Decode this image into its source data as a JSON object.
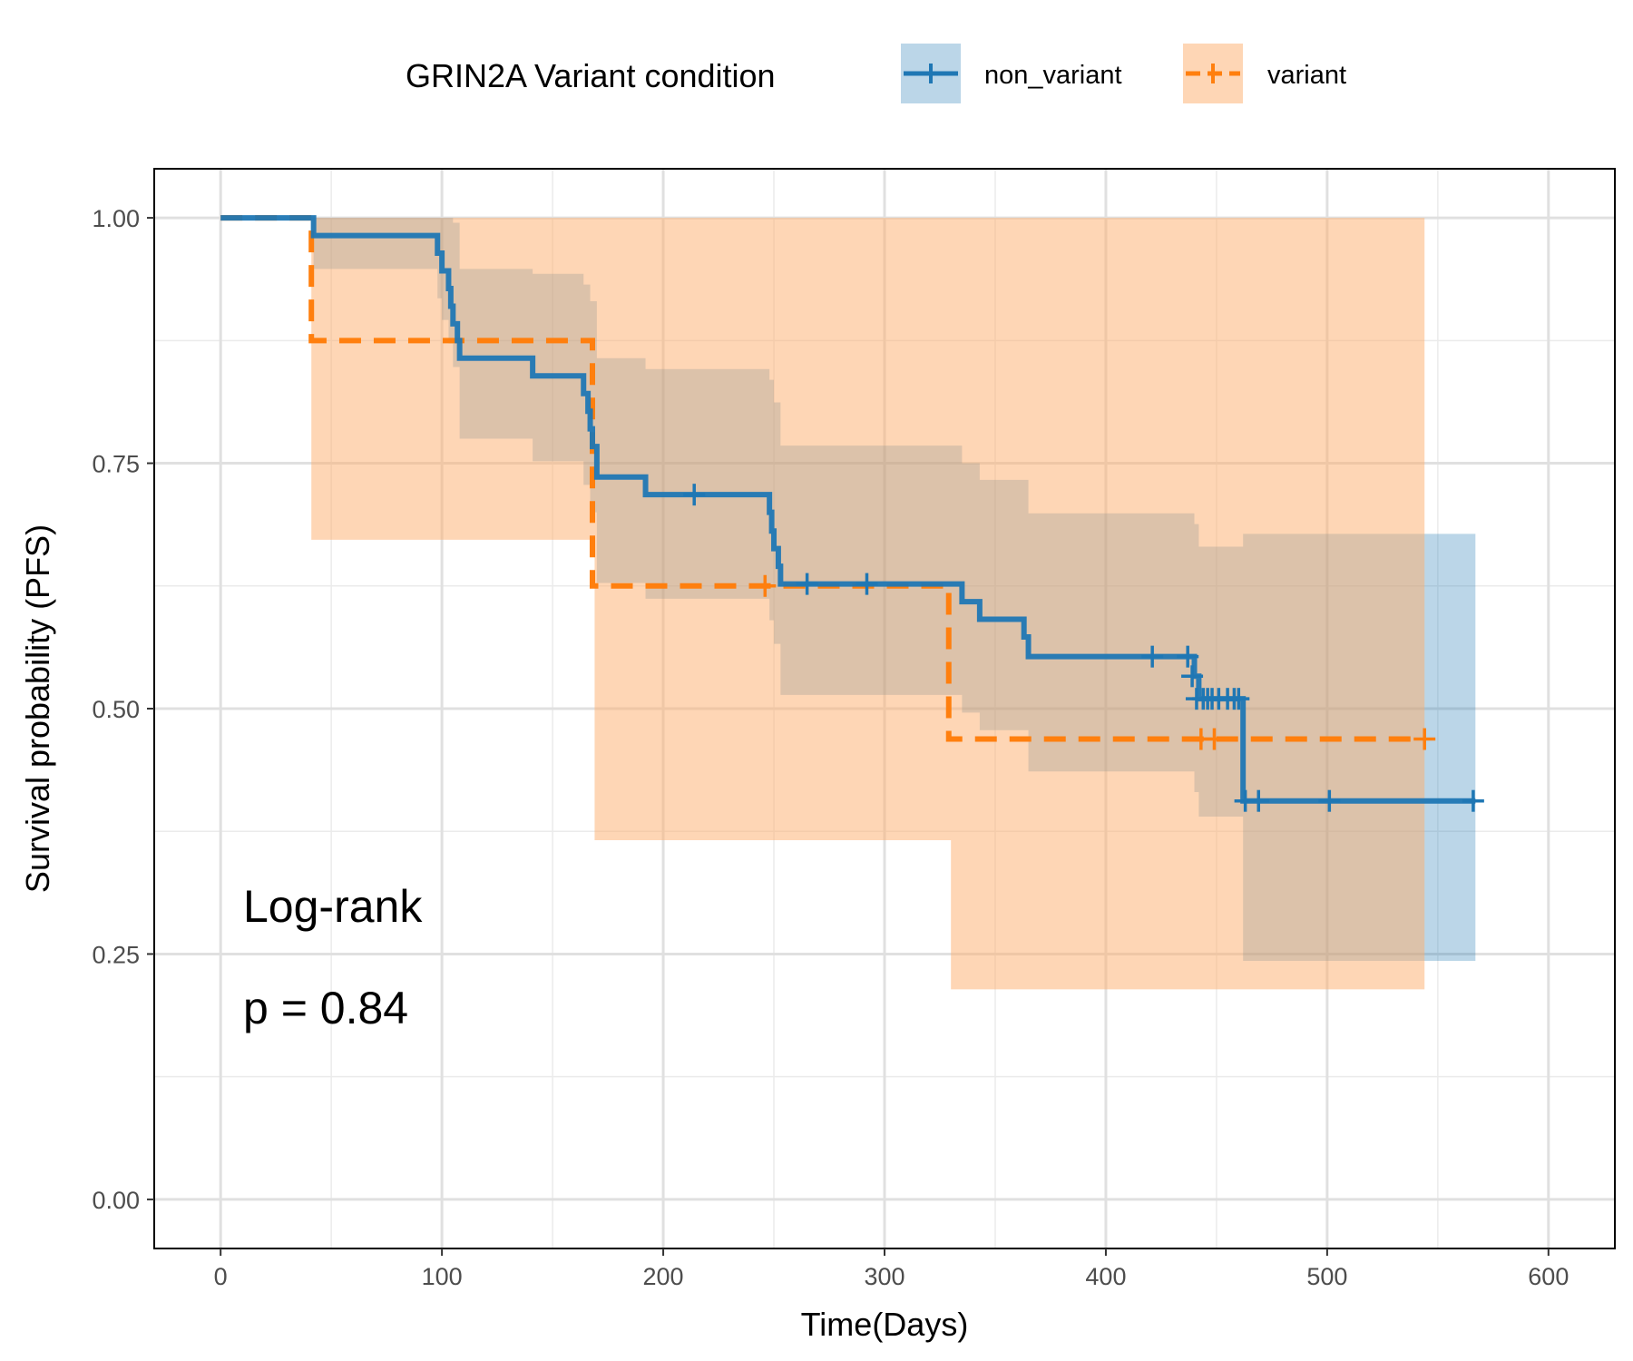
{
  "chart_data": {
    "type": "line",
    "subtype": "kaplan-meier-step",
    "xlabel": "Time(Days)",
    "ylabel": "Survival probability (PFS)",
    "xlim": [
      -30,
      630
    ],
    "ylim": [
      -0.05,
      1.05
    ],
    "x_ticks": [
      0,
      100,
      200,
      300,
      400,
      500,
      600
    ],
    "x_tick_labels": [
      "0",
      "100",
      "200",
      "300",
      "400",
      "500",
      "600"
    ],
    "y_ticks": [
      0,
      0.25,
      0.5,
      0.75,
      1.0
    ],
    "y_tick_labels": [
      "0.00",
      "0.25",
      "0.50",
      "0.75",
      "1.00"
    ],
    "grid": true,
    "legend": {
      "position": "top",
      "title": "GRIN2A Variant condition"
    },
    "annotations": [
      {
        "text": "Log-rank"
      },
      {
        "text": "p = 0.84"
      }
    ],
    "series": [
      {
        "name": "non_variant",
        "color": "#1f77b4",
        "band_color": "#1f77b4",
        "line_style": "solid",
        "steps": [
          [
            0,
            1.0
          ],
          [
            42,
            0.982
          ],
          [
            98,
            0.964
          ],
          [
            100,
            0.946
          ],
          [
            103,
            0.928
          ],
          [
            104,
            0.91
          ],
          [
            105,
            0.892
          ],
          [
            107,
            0.875
          ],
          [
            108,
            0.857
          ],
          [
            141,
            0.839
          ],
          [
            164,
            0.821
          ],
          [
            166,
            0.803
          ],
          [
            167,
            0.785
          ],
          [
            168,
            0.767
          ],
          [
            170,
            0.736
          ],
          [
            192,
            0.718
          ],
          [
            248,
            0.7
          ],
          [
            249,
            0.681
          ],
          [
            250,
            0.663
          ],
          [
            252,
            0.645
          ],
          [
            253,
            0.627
          ],
          [
            335,
            0.609
          ],
          [
            343,
            0.591
          ],
          [
            363,
            0.573
          ],
          [
            365,
            0.553
          ],
          [
            440,
            0.533
          ],
          [
            442,
            0.51
          ],
          [
            462,
            0.406
          ],
          [
            567,
            0.406
          ]
        ],
        "ci_band": [
          [
            0,
            1.0,
            1.0
          ],
          [
            42,
            0.948,
            1.0
          ],
          [
            98,
            0.918,
            1.0
          ],
          [
            100,
            0.896,
            1.0
          ],
          [
            103,
            0.872,
            1.0
          ],
          [
            105,
            0.848,
            0.995
          ],
          [
            108,
            0.775,
            0.948
          ],
          [
            141,
            0.752,
            0.943
          ],
          [
            164,
            0.728,
            0.932
          ],
          [
            167,
            0.7,
            0.915
          ],
          [
            170,
            0.628,
            0.857
          ],
          [
            192,
            0.612,
            0.846
          ],
          [
            248,
            0.59,
            0.835
          ],
          [
            250,
            0.566,
            0.812
          ],
          [
            253,
            0.514,
            0.768
          ],
          [
            335,
            0.496,
            0.75
          ],
          [
            343,
            0.478,
            0.733
          ],
          [
            365,
            0.436,
            0.699
          ],
          [
            440,
            0.415,
            0.688
          ],
          [
            442,
            0.39,
            0.665
          ],
          [
            462,
            0.243,
            0.678
          ],
          [
            567,
            0.243,
            0.678
          ]
        ],
        "censor_marks": [
          [
            214,
            0.718
          ],
          [
            265,
            0.627
          ],
          [
            292,
            0.627
          ],
          [
            421,
            0.553
          ],
          [
            437,
            0.553
          ],
          [
            439,
            0.533
          ],
          [
            441,
            0.51
          ],
          [
            444,
            0.51
          ],
          [
            446,
            0.51
          ],
          [
            448,
            0.51
          ],
          [
            451,
            0.51
          ],
          [
            455,
            0.51
          ],
          [
            458,
            0.51
          ],
          [
            460,
            0.51
          ],
          [
            463,
            0.406
          ],
          [
            469,
            0.406
          ],
          [
            501,
            0.406
          ],
          [
            566,
            0.406
          ]
        ]
      },
      {
        "name": "variant",
        "color": "#ff7f0e",
        "band_color": "#fdae6b",
        "line_style": "dashed",
        "steps": [
          [
            0,
            1.0
          ],
          [
            41,
            0.875
          ],
          [
            168,
            0.625
          ],
          [
            329,
            0.469
          ],
          [
            544,
            0.469
          ]
        ],
        "ci_band": [
          [
            0,
            1.0,
            1.0
          ],
          [
            41,
            0.672,
            1.0
          ],
          [
            169,
            0.366,
            1.0
          ],
          [
            330,
            0.214,
            1.0
          ],
          [
            544,
            0.214,
            1.0
          ]
        ],
        "censor_marks": [
          [
            246,
            0.625
          ],
          [
            443,
            0.469
          ],
          [
            449,
            0.469
          ],
          [
            544,
            0.469
          ]
        ]
      }
    ]
  }
}
